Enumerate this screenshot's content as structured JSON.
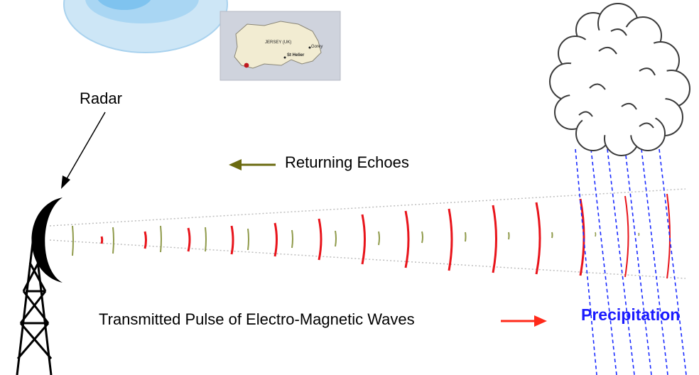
{
  "diagram": {
    "radar_label": "Radar",
    "echo_label": "Returning Echoes",
    "pulse_label": "Transmitted Pulse of Electro-Magnetic Waves",
    "precip_label": "Precipitation"
  },
  "inset_map": {
    "title": "JERSEY (UK)",
    "town_east": "Gorey",
    "town_capital": "St Helier"
  },
  "colors": {
    "pulse": "#e8141b",
    "echo": "#8f9a4a",
    "arrow_echo": "#6b6b10",
    "arrow_pulse": "#ff2a1a",
    "rain": "#1a2bff",
    "precip_text": "#1a1aff"
  },
  "icons": [
    "radar-dish-icon",
    "radar-tower-icon",
    "cloud-icon",
    "map-icon"
  ]
}
